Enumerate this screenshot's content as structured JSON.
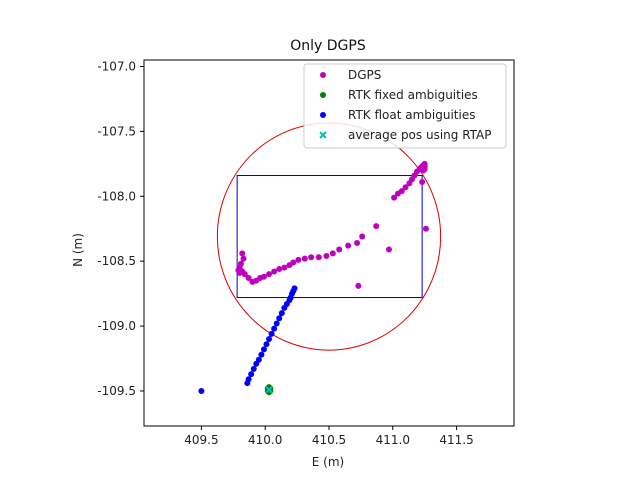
{
  "chart_data": {
    "type": "scatter",
    "title": "Only DGPS",
    "xlabel": "E (m)",
    "ylabel": "N (m)",
    "xlim": [
      409.05,
      411.95
    ],
    "ylim": [
      -109.77,
      -106.95
    ],
    "xticks": [
      409.5,
      410.0,
      410.5,
      411.0,
      411.5
    ],
    "xtick_labels": [
      "409.5",
      "410.0",
      "410.5",
      "411.0",
      "411.5"
    ],
    "yticks": [
      -107.0,
      -107.5,
      -108.0,
      -108.5,
      -109.0,
      -109.5
    ],
    "ytick_labels": [
      "-107.0",
      "-107.5",
      "-108.0",
      "-108.5",
      "-109.0",
      "-109.5"
    ],
    "grid": false,
    "legend_position": "top-right",
    "series": [
      {
        "name": "DGPS",
        "color": "#bf00bf",
        "marker": "circle",
        "x": [
          409.82,
          409.83,
          409.81,
          409.8,
          409.79,
          409.8,
          409.82,
          409.84,
          409.87,
          409.9,
          409.93,
          409.96,
          409.99,
          410.03,
          410.07,
          410.11,
          410.15,
          410.19,
          410.22,
          410.26,
          410.31,
          410.36,
          410.42,
          410.48,
          410.53,
          410.58,
          410.65,
          410.72,
          410.76,
          410.87,
          410.97,
          410.73,
          411.01,
          411.04,
          411.07,
          411.1,
          411.13,
          411.15,
          411.17,
          411.19,
          411.21,
          411.22,
          411.23,
          411.24,
          411.25,
          411.25,
          411.24,
          411.23,
          411.25,
          411.23,
          411.26
        ],
        "y": [
          -108.44,
          -108.48,
          -108.52,
          -108.55,
          -108.57,
          -108.59,
          -108.58,
          -108.6,
          -108.63,
          -108.66,
          -108.65,
          -108.63,
          -108.62,
          -108.6,
          -108.58,
          -108.56,
          -108.55,
          -108.53,
          -108.51,
          -108.49,
          -108.48,
          -108.47,
          -108.47,
          -108.46,
          -108.44,
          -108.41,
          -108.38,
          -108.36,
          -108.31,
          -108.23,
          -108.41,
          -108.69,
          -108.01,
          -107.98,
          -107.96,
          -107.93,
          -107.9,
          -107.87,
          -107.84,
          -107.81,
          -107.79,
          -107.78,
          -107.77,
          -107.76,
          -107.77,
          -107.79,
          -107.8,
          -107.78,
          -107.75,
          -107.89,
          -108.25
        ]
      },
      {
        "name": "RTK fixed ambiguities",
        "color": "#007f00",
        "marker": "circle",
        "x": [
          410.02,
          410.03,
          410.04,
          410.03,
          410.02,
          410.04,
          410.03
        ],
        "y": [
          -109.48,
          -109.49,
          -109.5,
          -109.51,
          -109.5,
          -109.48,
          -109.47
        ]
      },
      {
        "name": "RTK float ambiguities",
        "color": "#0000ff",
        "marker": "circle",
        "x": [
          409.5,
          409.86,
          409.87,
          409.89,
          409.91,
          409.93,
          409.95,
          409.97,
          409.99,
          410.01,
          410.03,
          410.05,
          410.07,
          410.09,
          410.11,
          410.13,
          410.15,
          410.17,
          410.19,
          410.2,
          410.21,
          410.22,
          410.23
        ],
        "y": [
          -109.5,
          -109.44,
          -109.41,
          -109.37,
          -109.33,
          -109.29,
          -109.26,
          -109.22,
          -109.18,
          -109.14,
          -109.1,
          -109.06,
          -109.02,
          -108.98,
          -108.94,
          -108.9,
          -108.86,
          -108.83,
          -108.8,
          -108.78,
          -108.75,
          -108.73,
          -108.71
        ]
      },
      {
        "name": "average pos using RTAP",
        "color": "#00bfbf",
        "marker": "x",
        "x": [
          410.03
        ],
        "y": [
          -109.49
        ]
      }
    ],
    "shapes": [
      {
        "kind": "circle",
        "color": "#dd0000",
        "center": [
          410.5,
          -108.31
        ],
        "radius": 0.875
      },
      {
        "kind": "rectangle",
        "color": "#0000cc",
        "x0": 409.78,
        "x1": 411.23,
        "y0": -108.78,
        "y1": -107.84
      }
    ]
  }
}
